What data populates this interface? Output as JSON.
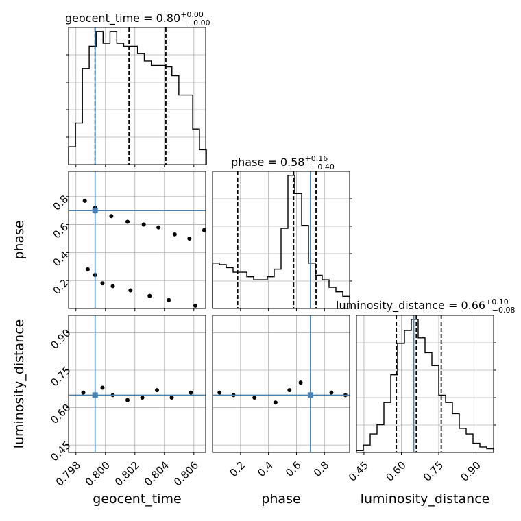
{
  "chart_data": {
    "type": "corner",
    "parameters": [
      "geocent_time",
      "phase",
      "luminosity_distance"
    ],
    "titles": [
      {
        "param": "geocent_time",
        "prefix": "geocent_time = ",
        "median": "0.80",
        "plus": "+0.00",
        "minus": "−0.00"
      },
      {
        "param": "phase",
        "prefix": "phase = ",
        "median": "0.58",
        "plus": "+0.16",
        "minus": "−0.40"
      },
      {
        "param": "luminosity_distance",
        "prefix": "luminosity_distance = ",
        "median": "0.66",
        "plus": "+0.10",
        "minus": "−0.08"
      }
    ],
    "ranges": {
      "geocent_time": [
        0.7975,
        0.8068
      ],
      "phase": [
        0.0,
        0.98
      ],
      "luminosity_distance": [
        0.42,
        0.97
      ]
    },
    "ticks": {
      "geocent_time": {
        "values": [
          0.798,
          0.8,
          0.802,
          0.804,
          0.806
        ],
        "labels": [
          "0.798",
          "0.800",
          "0.802",
          "0.804",
          "0.806"
        ]
      },
      "phase": {
        "values": [
          0.2,
          0.4,
          0.6,
          0.8
        ],
        "labels": [
          "0.2",
          "0.4",
          "0.6",
          "0.8"
        ]
      },
      "luminosity_distance": {
        "values": [
          0.45,
          0.6,
          0.75,
          0.9
        ],
        "labels": [
          "0.45",
          "0.60",
          "0.75",
          "0.90"
        ]
      }
    },
    "truths": {
      "geocent_time": 0.7993,
      "phase": 0.7,
      "luminosity_distance": 0.65
    },
    "quantiles": {
      "geocent_time": [
        0.7993,
        0.8016,
        0.8041
      ],
      "phase": [
        0.18,
        0.58,
        0.74
      ],
      "luminosity_distance": [
        0.58,
        0.66,
        0.76
      ]
    },
    "histograms": {
      "geocent_time": {
        "bins": [
          0.7975,
          0.79797,
          0.79844,
          0.7989,
          0.79937,
          0.79984,
          0.80031,
          0.80077,
          0.80124,
          0.80171,
          0.80218,
          0.80264,
          0.80311,
          0.80358,
          0.80405,
          0.80451,
          0.80498,
          0.80545,
          0.80592,
          0.80638,
          0.80685
        ],
        "counts": [
          0.12,
          0.28,
          0.65,
          0.8,
          0.9,
          0.82,
          0.9,
          0.82,
          0.8,
          0.8,
          0.75,
          0.7,
          0.67,
          0.67,
          0.66,
          0.6,
          0.47,
          0.47,
          0.24,
          0.1
        ]
      },
      "phase": {
        "bins": [
          0.0,
          0.049,
          0.098,
          0.147,
          0.196,
          0.245,
          0.294,
          0.343,
          0.392,
          0.441,
          0.49,
          0.539,
          0.588,
          0.637,
          0.686,
          0.735,
          0.784,
          0.833,
          0.882,
          0.931,
          0.98
        ],
        "counts": [
          0.3,
          0.29,
          0.27,
          0.24,
          0.24,
          0.21,
          0.19,
          0.19,
          0.21,
          0.26,
          0.53,
          0.88,
          0.76,
          0.55,
          0.3,
          0.22,
          0.19,
          0.14,
          0.11,
          0.08
        ]
      },
      "luminosity_distance": {
        "bins": [
          0.42,
          0.4475,
          0.475,
          0.5025,
          0.53,
          0.5575,
          0.585,
          0.6125,
          0.64,
          0.6675,
          0.695,
          0.7225,
          0.75,
          0.7775,
          0.805,
          0.8325,
          0.86,
          0.8875,
          0.915,
          0.9425,
          0.97
        ],
        "counts": [
          0.01,
          0.04,
          0.1,
          0.15,
          0.27,
          0.42,
          0.59,
          0.66,
          0.72,
          0.62,
          0.54,
          0.47,
          0.31,
          0.27,
          0.21,
          0.13,
          0.1,
          0.05,
          0.03,
          0.02
        ]
      }
    },
    "peak_points": {
      "phase_vs_geocent_time": [
        [
          0.7986,
          0.77
        ],
        [
          0.7993,
          0.72
        ],
        [
          0.8004,
          0.66
        ],
        [
          0.8015,
          0.62
        ],
        [
          0.8026,
          0.6
        ],
        [
          0.8036,
          0.58
        ],
        [
          0.8047,
          0.53
        ],
        [
          0.8057,
          0.5
        ],
        [
          0.8067,
          0.56
        ],
        [
          0.7988,
          0.28
        ],
        [
          0.7993,
          0.24
        ],
        [
          0.7998,
          0.18
        ],
        [
          0.8005,
          0.16
        ],
        [
          0.8017,
          0.13
        ],
        [
          0.803,
          0.09
        ],
        [
          0.8043,
          0.06
        ],
        [
          0.8061,
          0.02
        ]
      ],
      "luminosity_distance_vs_geocent_time": [
        [
          0.7985,
          0.66
        ],
        [
          0.7998,
          0.68
        ],
        [
          0.8005,
          0.65
        ],
        [
          0.8015,
          0.63
        ],
        [
          0.8025,
          0.64
        ],
        [
          0.8035,
          0.67
        ],
        [
          0.8045,
          0.64
        ],
        [
          0.8058,
          0.66
        ]
      ],
      "luminosity_distance_vs_phase": [
        [
          0.05,
          0.66
        ],
        [
          0.15,
          0.65
        ],
        [
          0.3,
          0.64
        ],
        [
          0.45,
          0.62
        ],
        [
          0.55,
          0.67
        ],
        [
          0.63,
          0.7
        ],
        [
          0.7,
          0.65
        ],
        [
          0.85,
          0.66
        ],
        [
          0.95,
          0.65
        ]
      ]
    }
  }
}
